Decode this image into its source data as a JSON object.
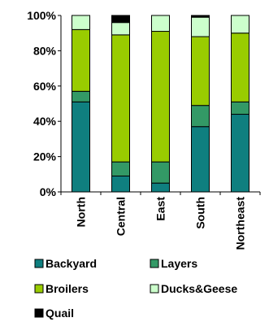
{
  "chart_data": {
    "type": "bar",
    "stacked": true,
    "normalized": true,
    "categories": [
      "North",
      "Central",
      "East",
      "South",
      "Northeast"
    ],
    "series": [
      {
        "name": "Backyard",
        "color": "#0f7f7f",
        "values": [
          51,
          9,
          5,
          37,
          44
        ]
      },
      {
        "name": "Layers",
        "color": "#339966",
        "values": [
          6,
          8,
          12,
          12,
          7
        ]
      },
      {
        "name": "Broilers",
        "color": "#99cc00",
        "values": [
          35,
          72,
          74,
          39,
          39
        ]
      },
      {
        "name": "Ducks&Geese",
        "color": "#ccffcc",
        "values": [
          8,
          7,
          9,
          11,
          10
        ]
      },
      {
        "name": "Quail",
        "color": "#000000",
        "values": [
          0,
          4,
          0,
          1,
          0
        ]
      }
    ],
    "y_ticks": [
      "0%",
      "20%",
      "40%",
      "60%",
      "80%",
      "100%"
    ],
    "ylim": [
      0,
      100
    ],
    "grid": false,
    "legend_position": "bottom"
  }
}
